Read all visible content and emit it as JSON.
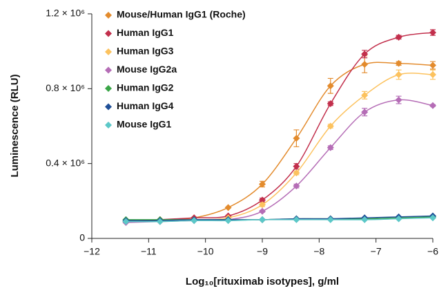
{
  "chart_data": {
    "type": "line",
    "y_label": "Luminescence (RLU)",
    "x_label": "Log₁₀[rituximab isotypes], g/ml",
    "x": [
      -11.4,
      -10.8,
      -10.2,
      -9.6,
      -9.0,
      -8.4,
      -7.8,
      -7.2,
      -6.6,
      -6.0
    ],
    "series": [
      {
        "name": "Mouse/Human IgG1 (Roche)",
        "color": "#e38b2d",
        "values": [
          90000,
          100000,
          110000,
          165000,
          290000,
          535000,
          815000,
          930000,
          935000,
          925000
        ],
        "errors": [
          0,
          0,
          0,
          0,
          15000,
          45000,
          40000,
          45000,
          10000,
          20000
        ]
      },
      {
        "name": "Human IgG1",
        "color": "#c22f4c",
        "values": [
          90000,
          100000,
          110000,
          120000,
          205000,
          385000,
          720000,
          985000,
          1075000,
          1100000
        ],
        "errors": [
          0,
          0,
          0,
          0,
          10000,
          15000,
          10000,
          20000,
          10000,
          15000
        ]
      },
      {
        "name": "Human IgG3",
        "color": "#fcc25e",
        "values": [
          90000,
          90000,
          100000,
          110000,
          180000,
          350000,
          600000,
          765000,
          875000,
          875000
        ],
        "errors": [
          0,
          0,
          0,
          0,
          10000,
          10000,
          10000,
          20000,
          25000,
          25000
        ]
      },
      {
        "name": "Mouse IgG2a",
        "color": "#b56db6",
        "values": [
          85000,
          90000,
          95000,
          100000,
          145000,
          280000,
          485000,
          675000,
          740000,
          710000
        ],
        "errors": [
          0,
          0,
          0,
          0,
          5000,
          10000,
          10000,
          20000,
          20000,
          5000
        ]
      },
      {
        "name": "Human IgG2",
        "color": "#3aa547",
        "values": [
          100000,
          100000,
          100000,
          100000,
          100000,
          105000,
          105000,
          105000,
          110000,
          115000
        ],
        "errors": [
          0,
          0,
          0,
          0,
          0,
          0,
          0,
          0,
          0,
          0
        ]
      },
      {
        "name": "Human IgG4",
        "color": "#1f4f97",
        "values": [
          95000,
          95000,
          100000,
          100000,
          100000,
          105000,
          105000,
          110000,
          115000,
          120000
        ],
        "errors": [
          0,
          0,
          0,
          0,
          0,
          0,
          0,
          0,
          0,
          0
        ]
      },
      {
        "name": "Mouse IgG1",
        "color": "#5cc8c8",
        "values": [
          90000,
          90000,
          95000,
          95000,
          100000,
          100000,
          100000,
          100000,
          105000,
          110000
        ],
        "errors": [
          0,
          0,
          0,
          0,
          0,
          0,
          0,
          0,
          0,
          0
        ]
      }
    ],
    "xlim": [
      -12,
      -6
    ],
    "xticks": [
      {
        "value": -12,
        "label": "−12"
      },
      {
        "value": -11,
        "label": "−11"
      },
      {
        "value": -10,
        "label": "−10"
      },
      {
        "value": -9,
        "label": "−9"
      },
      {
        "value": -8,
        "label": "−8"
      },
      {
        "value": -7,
        "label": "−7"
      },
      {
        "value": -6,
        "label": "−6"
      }
    ],
    "ylim": [
      0,
      1200000
    ],
    "yticks": [
      0,
      {
        "value": 400000,
        "label": "0.4 × 10⁶"
      },
      {
        "value": 800000,
        "label": "0.8 × 10⁶"
      },
      {
        "value": 1200000,
        "label": "1.2 × 10⁶"
      }
    ],
    "grid": false,
    "legend": "upper left"
  }
}
